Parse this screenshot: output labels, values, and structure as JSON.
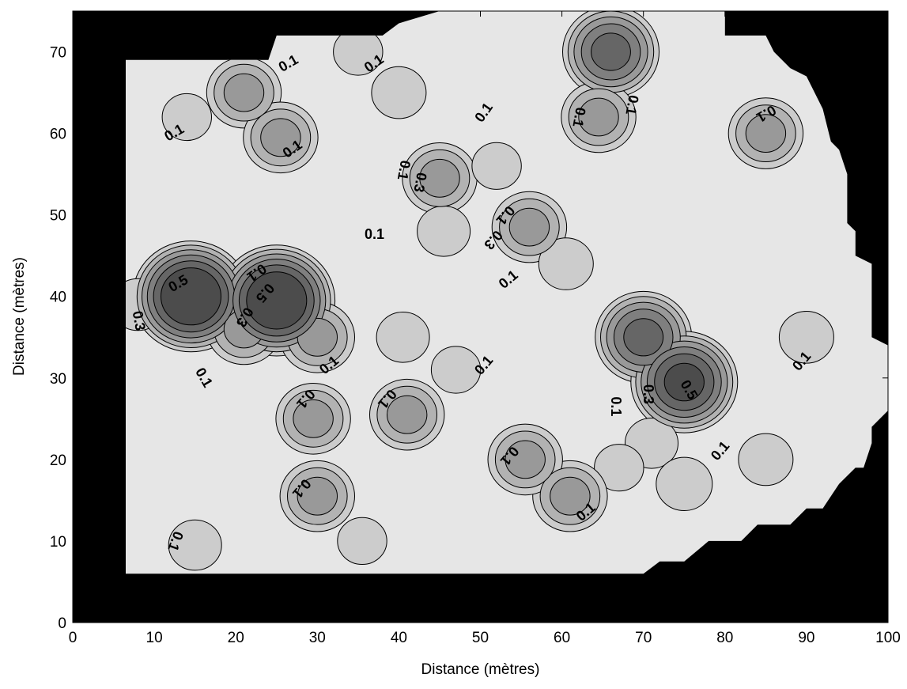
{
  "chart_data": {
    "type": "contour",
    "xlabel": "Distance (mètres)",
    "ylabel": "Distance (mètres)",
    "xlim": [
      0,
      100
    ],
    "ylim": [
      0,
      75
    ],
    "xticks": [
      "0",
      "10",
      "20",
      "30",
      "40",
      "50",
      "60",
      "70",
      "80",
      "90",
      "100"
    ],
    "yticks": [
      "0",
      "10",
      "20",
      "30",
      "40",
      "50",
      "60",
      "70"
    ],
    "levels": [
      0.1,
      0.3,
      0.5
    ],
    "grid": false,
    "colors": {
      "outside": "#000000",
      "background": "#e6e6e6",
      "level_fill": [
        "#cccccc",
        "#b2b2b2",
        "#999999",
        "#7f7f7f",
        "#666666",
        "#4c4c4c"
      ]
    },
    "mask_polygon": [
      [
        6.5,
        6
      ],
      [
        70,
        6
      ],
      [
        72,
        7.5
      ],
      [
        75,
        7.5
      ],
      [
        78,
        10
      ],
      [
        82,
        10
      ],
      [
        84,
        12
      ],
      [
        88,
        12
      ],
      [
        90,
        14
      ],
      [
        92,
        14
      ],
      [
        94,
        17
      ],
      [
        96,
        19
      ],
      [
        97,
        19
      ],
      [
        98,
        22
      ],
      [
        98,
        24
      ],
      [
        100,
        26
      ],
      [
        100,
        34
      ],
      [
        98,
        35
      ],
      [
        98,
        44
      ],
      [
        96,
        45
      ],
      [
        96,
        48
      ],
      [
        95,
        49
      ],
      [
        95,
        55
      ],
      [
        94,
        58
      ],
      [
        93,
        59
      ],
      [
        92,
        63
      ],
      [
        90,
        67
      ],
      [
        88,
        68
      ],
      [
        86,
        70
      ],
      [
        85,
        72
      ],
      [
        80,
        72
      ],
      [
        80,
        75
      ],
      [
        50,
        75
      ],
      [
        45,
        75
      ],
      [
        40,
        73.5
      ],
      [
        38,
        72
      ],
      [
        25,
        72
      ],
      [
        24,
        69
      ],
      [
        6.5,
        69
      ]
    ],
    "peaks": [
      {
        "x": 14.5,
        "y": 40,
        "value": 0.7
      },
      {
        "x": 25,
        "y": 39.5,
        "value": 0.7
      },
      {
        "x": 21,
        "y": 36,
        "value": 0.3
      },
      {
        "x": 30,
        "y": 35,
        "value": 0.3
      },
      {
        "x": 8,
        "y": 39,
        "value": 0.15
      },
      {
        "x": 21,
        "y": 65,
        "value": 0.3
      },
      {
        "x": 14,
        "y": 62,
        "value": 0.12
      },
      {
        "x": 25.5,
        "y": 59.5,
        "value": 0.3
      },
      {
        "x": 35,
        "y": 70,
        "value": 0.12
      },
      {
        "x": 40,
        "y": 65,
        "value": 0.15
      },
      {
        "x": 45,
        "y": 54.5,
        "value": 0.3
      },
      {
        "x": 45.5,
        "y": 48,
        "value": 0.14
      },
      {
        "x": 52,
        "y": 56,
        "value": 0.12
      },
      {
        "x": 56,
        "y": 48.5,
        "value": 0.3
      },
      {
        "x": 60.5,
        "y": 44,
        "value": 0.15
      },
      {
        "x": 66,
        "y": 70,
        "value": 0.5
      },
      {
        "x": 64.5,
        "y": 62,
        "value": 0.3
      },
      {
        "x": 85,
        "y": 60,
        "value": 0.3
      },
      {
        "x": 70,
        "y": 35,
        "value": 0.5
      },
      {
        "x": 75,
        "y": 29.5,
        "value": 0.6
      },
      {
        "x": 71,
        "y": 22,
        "value": 0.14
      },
      {
        "x": 75,
        "y": 17,
        "value": 0.16
      },
      {
        "x": 67,
        "y": 19,
        "value": 0.12
      },
      {
        "x": 61,
        "y": 15.5,
        "value": 0.3
      },
      {
        "x": 55.5,
        "y": 20,
        "value": 0.3
      },
      {
        "x": 41,
        "y": 25.5,
        "value": 0.3
      },
      {
        "x": 47,
        "y": 31,
        "value": 0.12
      },
      {
        "x": 40.5,
        "y": 35,
        "value": 0.14
      },
      {
        "x": 29.5,
        "y": 25,
        "value": 0.3
      },
      {
        "x": 30,
        "y": 15.5,
        "value": 0.3
      },
      {
        "x": 15,
        "y": 9.5,
        "value": 0.14
      },
      {
        "x": 35.5,
        "y": 10,
        "value": 0.12
      },
      {
        "x": 85,
        "y": 20,
        "value": 0.15
      },
      {
        "x": 90,
        "y": 35,
        "value": 0.15
      }
    ],
    "contour_labels": [
      {
        "text": "0.1",
        "x": 26.5,
        "y": 68.5,
        "angle": -30
      },
      {
        "text": "0.1",
        "x": 37,
        "y": 68.5,
        "angle": -35
      },
      {
        "text": "0.1",
        "x": 12.5,
        "y": 60,
        "angle": -30
      },
      {
        "text": "0.1",
        "x": 27,
        "y": 58,
        "angle": -35
      },
      {
        "text": "0.1",
        "x": 50.5,
        "y": 62.5,
        "angle": -55
      },
      {
        "text": "0.1",
        "x": 62,
        "y": 62,
        "angle": 100
      },
      {
        "text": "0.1",
        "x": 68.5,
        "y": 63.5,
        "angle": 100
      },
      {
        "text": "0.1",
        "x": 85,
        "y": 62.5,
        "angle": 150
      },
      {
        "text": "0.1",
        "x": 40.5,
        "y": 55.5,
        "angle": 100
      },
      {
        "text": "0.3",
        "x": 42.5,
        "y": 54,
        "angle": 100
      },
      {
        "text": "0.1",
        "x": 53,
        "y": 50,
        "angle": 130
      },
      {
        "text": "0.3",
        "x": 51.5,
        "y": 47,
        "angle": 130
      },
      {
        "text": "0.1",
        "x": 37,
        "y": 47.5,
        "angle": 0
      },
      {
        "text": "0.1",
        "x": 53.5,
        "y": 42,
        "angle": -40
      },
      {
        "text": "0.5",
        "x": 13,
        "y": 41.5,
        "angle": -30
      },
      {
        "text": "0.3",
        "x": 8,
        "y": 37,
        "angle": 80
      },
      {
        "text": "0.1",
        "x": 22.5,
        "y": 43,
        "angle": 145
      },
      {
        "text": "0.3",
        "x": 21,
        "y": 37.5,
        "angle": 120
      },
      {
        "text": "0.5",
        "x": 23.5,
        "y": 40.5,
        "angle": 130
      },
      {
        "text": "0.1",
        "x": 31.5,
        "y": 31.5,
        "angle": -40
      },
      {
        "text": "0.1",
        "x": 16,
        "y": 30,
        "angle": 60
      },
      {
        "text": "0.1",
        "x": 50.5,
        "y": 31.5,
        "angle": -50
      },
      {
        "text": "0.1",
        "x": 28.5,
        "y": 27.5,
        "angle": 130
      },
      {
        "text": "0.1",
        "x": 38.5,
        "y": 27.5,
        "angle": 130
      },
      {
        "text": "0.1",
        "x": 66.5,
        "y": 26.5,
        "angle": 90
      },
      {
        "text": "0.3",
        "x": 70.5,
        "y": 28,
        "angle": 90
      },
      {
        "text": "0.5",
        "x": 75.5,
        "y": 28.5,
        "angle": 60
      },
      {
        "text": "0.1",
        "x": 53.5,
        "y": 20.5,
        "angle": 130
      },
      {
        "text": "0.1",
        "x": 79.5,
        "y": 21,
        "angle": -50
      },
      {
        "text": "0.1",
        "x": 89.5,
        "y": 32,
        "angle": -50
      },
      {
        "text": "0.1",
        "x": 28,
        "y": 16.5,
        "angle": 130
      },
      {
        "text": "0.1",
        "x": 63,
        "y": 13.5,
        "angle": -40
      },
      {
        "text": "0.1",
        "x": 12.5,
        "y": 10,
        "angle": 110
      }
    ]
  }
}
